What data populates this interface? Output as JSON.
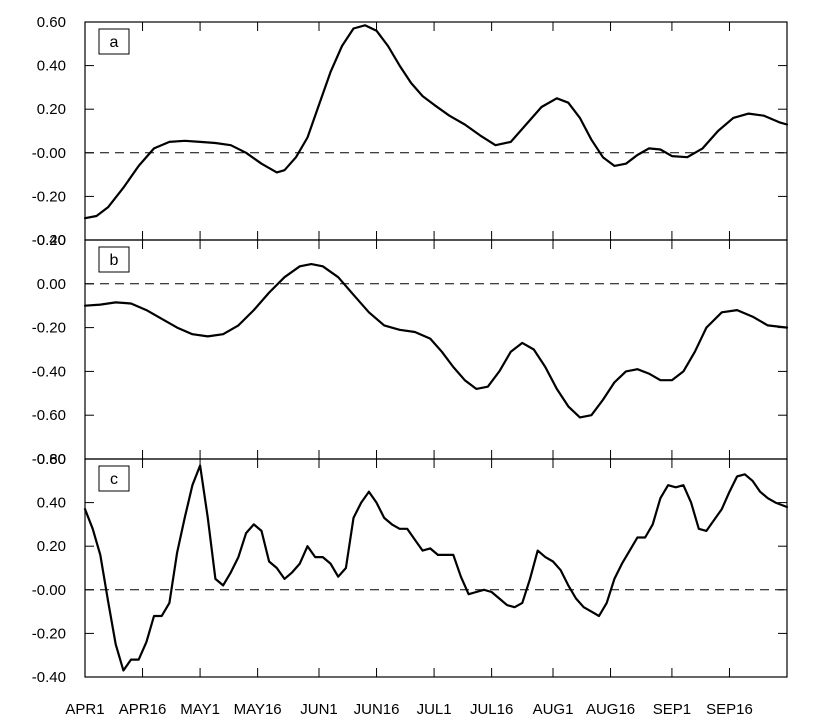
{
  "chart_data": {
    "type": "line",
    "x_tick_labels": [
      "APR1",
      "APR16",
      "MAY1",
      "MAY16",
      "JUN1",
      "JUN16",
      "JUL1",
      "JUL16",
      "AUG1",
      "AUG16",
      "SEP1",
      "SEP16"
    ],
    "x_tick_days": [
      0,
      15,
      30,
      45,
      61,
      76,
      91,
      106,
      122,
      137,
      153,
      168
    ],
    "x_range_days": [
      0,
      183
    ],
    "grid": false,
    "reference_line_y": 0,
    "panels": [
      {
        "label": "a",
        "ylim": [
          -0.4,
          0.6
        ],
        "yticks": [
          -0.4,
          -0.2,
          0,
          0.2,
          0.4,
          0.6
        ],
        "ytick_labels": [
          "-0.40",
          "-0.20",
          "-0.00",
          "0.20",
          "0.40",
          "0.60"
        ],
        "series": [
          {
            "x": [
              0,
              3,
              6,
              10,
              14,
              18,
              22,
              26,
              30,
              34,
              38,
              42,
              46,
              50,
              52,
              55,
              58,
              61,
              64,
              67,
              70,
              73,
              76,
              79,
              82,
              85,
              88,
              91,
              95,
              99,
              103,
              107,
              111,
              115,
              119,
              123,
              126,
              129,
              132,
              135,
              138,
              141,
              144,
              147,
              150,
              153,
              157,
              161,
              165,
              169,
              173,
              177,
              181,
              183
            ],
            "y": [
              -0.3,
              -0.29,
              -0.25,
              -0.16,
              -0.06,
              0.02,
              0.05,
              0.055,
              0.05,
              0.045,
              0.035,
              0.0,
              -0.05,
              -0.09,
              -0.08,
              -0.02,
              0.07,
              0.22,
              0.37,
              0.49,
              0.57,
              0.585,
              0.56,
              0.49,
              0.4,
              0.32,
              0.26,
              0.22,
              0.17,
              0.13,
              0.08,
              0.035,
              0.05,
              0.13,
              0.21,
              0.25,
              0.23,
              0.16,
              0.06,
              -0.02,
              -0.06,
              -0.05,
              -0.01,
              0.02,
              0.015,
              -0.015,
              -0.02,
              0.02,
              0.1,
              0.16,
              0.18,
              0.17,
              0.14,
              0.13
            ]
          }
        ]
      },
      {
        "label": "b",
        "ylim": [
          -0.8,
          0.2
        ],
        "yticks": [
          -0.8,
          -0.6,
          -0.4,
          -0.2,
          0,
          0.2
        ],
        "ytick_labels": [
          "-0.80",
          "-0.60",
          "-0.40",
          "-0.20",
          "0.00",
          "0.20"
        ],
        "series": [
          {
            "x": [
              0,
              4,
              8,
              12,
              16,
              20,
              24,
              28,
              32,
              36,
              40,
              44,
              48,
              52,
              56,
              59,
              62,
              66,
              70,
              74,
              78,
              82,
              86,
              90,
              93,
              96,
              99,
              102,
              105,
              108,
              111,
              114,
              117,
              120,
              123,
              126,
              129,
              132,
              135,
              138,
              141,
              144,
              147,
              150,
              153,
              156,
              159,
              162,
              166,
              170,
              174,
              178,
              183
            ],
            "y": [
              -0.1,
              -0.095,
              -0.085,
              -0.09,
              -0.12,
              -0.16,
              -0.2,
              -0.23,
              -0.24,
              -0.23,
              -0.19,
              -0.12,
              -0.04,
              0.03,
              0.08,
              0.09,
              0.08,
              0.03,
              -0.05,
              -0.13,
              -0.19,
              -0.21,
              -0.22,
              -0.25,
              -0.31,
              -0.38,
              -0.44,
              -0.48,
              -0.47,
              -0.4,
              -0.31,
              -0.27,
              -0.3,
              -0.38,
              -0.48,
              -0.56,
              -0.61,
              -0.6,
              -0.53,
              -0.45,
              -0.4,
              -0.39,
              -0.41,
              -0.44,
              -0.44,
              -0.4,
              -0.31,
              -0.2,
              -0.13,
              -0.12,
              -0.15,
              -0.19,
              -0.2
            ]
          }
        ]
      },
      {
        "label": "c",
        "ylim": [
          -0.4,
          0.6
        ],
        "yticks": [
          -0.4,
          -0.2,
          0,
          0.2,
          0.4,
          0.6
        ],
        "ytick_labels": [
          "-0.40",
          "-0.20",
          "-0.00",
          "0.20",
          "0.40",
          "0.60"
        ],
        "series": [
          {
            "x": [
              0,
              2,
              4,
              6,
              8,
              10,
              12,
              14,
              16,
              18,
              20,
              22,
              24,
              26,
              28,
              30,
              32,
              34,
              36,
              38,
              40,
              42,
              44,
              46,
              48,
              50,
              52,
              54,
              56,
              58,
              60,
              62,
              64,
              66,
              68,
              70,
              72,
              74,
              76,
              78,
              80,
              82,
              84,
              86,
              88,
              90,
              92,
              94,
              96,
              98,
              100,
              102,
              104,
              106,
              108,
              110,
              112,
              114,
              116,
              118,
              120,
              122,
              124,
              126,
              128,
              130,
              132,
              134,
              136,
              138,
              140,
              142,
              144,
              146,
              148,
              150,
              152,
              154,
              156,
              158,
              160,
              162,
              164,
              166,
              168,
              170,
              172,
              174,
              176,
              178,
              180,
              183
            ],
            "y": [
              0.37,
              0.28,
              0.16,
              -0.05,
              -0.25,
              -0.37,
              -0.32,
              -0.32,
              -0.24,
              -0.12,
              -0.12,
              -0.06,
              0.17,
              0.33,
              0.48,
              0.57,
              0.33,
              0.05,
              0.02,
              0.08,
              0.15,
              0.26,
              0.3,
              0.27,
              0.13,
              0.1,
              0.05,
              0.08,
              0.12,
              0.2,
              0.15,
              0.15,
              0.12,
              0.06,
              0.1,
              0.33,
              0.4,
              0.45,
              0.4,
              0.33,
              0.3,
              0.28,
              0.28,
              0.23,
              0.18,
              0.19,
              0.16,
              0.16,
              0.16,
              0.06,
              -0.02,
              -0.01,
              0.0,
              -0.01,
              -0.04,
              -0.07,
              -0.08,
              -0.06,
              0.05,
              0.18,
              0.15,
              0.13,
              0.09,
              0.02,
              -0.04,
              -0.08,
              -0.1,
              -0.12,
              -0.06,
              0.05,
              0.12,
              0.18,
              0.24,
              0.24,
              0.3,
              0.42,
              0.48,
              0.47,
              0.48,
              0.4,
              0.28,
              0.27,
              0.32,
              0.37,
              0.45,
              0.52,
              0.53,
              0.5,
              0.45,
              0.42,
              0.4,
              0.38
            ]
          }
        ]
      }
    ]
  }
}
